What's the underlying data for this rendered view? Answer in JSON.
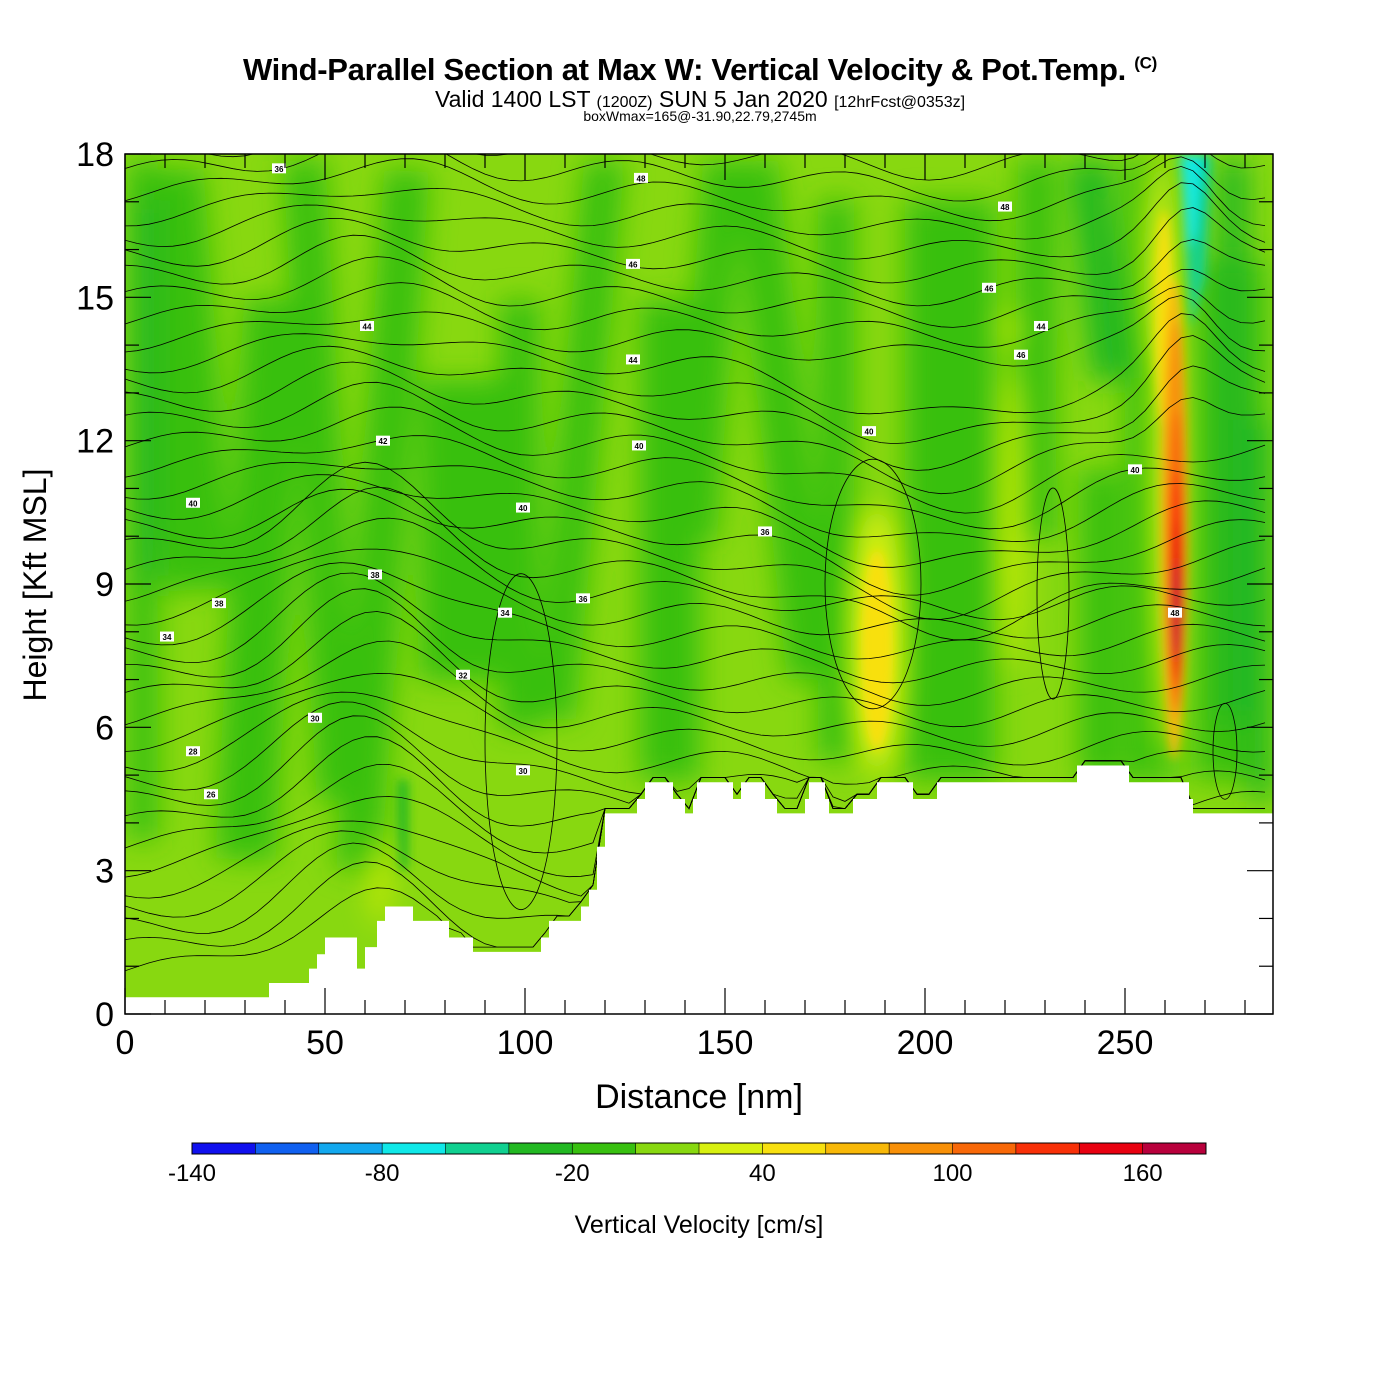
{
  "header": {
    "title": "Wind-Parallel Section at Max W: Vertical Velocity & Pot.Temp.",
    "copyright": "(C)",
    "valid_main": "Valid 1400 LST",
    "valid_z": "(1200Z)",
    "valid_date": "SUN 5 Jan 2020",
    "forecast": "[12hrFcst@0353z]",
    "box_wmax": "boxWmax=165@-31.90,22.79,2745m"
  },
  "chart_data": {
    "type": "heatmap",
    "title": "Wind-Parallel Section at Max W: Vertical Velocity & Pot.Temp.",
    "xlabel": "Distance [nm]",
    "ylabel": "Height [Kft MSL]",
    "xlim": [
      0,
      287
    ],
    "ylim": [
      0,
      18
    ],
    "x_ticks": [
      "0",
      "50",
      "100",
      "150",
      "200",
      "250"
    ],
    "y_ticks": [
      "0",
      "3",
      "6",
      "9",
      "12",
      "15",
      "18"
    ],
    "colorbar": {
      "label": "Vertical Velocity [cm/s]",
      "tick_labels": [
        "-140",
        "-80",
        "-20",
        "40",
        "100",
        "160"
      ],
      "colors": [
        "#1010ee",
        "#1060f0",
        "#12a8ee",
        "#10e8e8",
        "#10d090",
        "#22b822",
        "#38c010",
        "#88d810",
        "#d8f010",
        "#f8e010",
        "#f8b808",
        "#f89008",
        "#f86808",
        "#f83008",
        "#e80010",
        "#b8003c"
      ]
    },
    "terrain_kft": [
      [
        0,
        0.35
      ],
      [
        33,
        0.35
      ],
      [
        36,
        0.65
      ],
      [
        45,
        0.65
      ],
      [
        46,
        0.95
      ],
      [
        48,
        1.25
      ],
      [
        50,
        1.6
      ],
      [
        56,
        1.6
      ],
      [
        58,
        0.95
      ],
      [
        60,
        1.4
      ],
      [
        63,
        1.95
      ],
      [
        65,
        2.25
      ],
      [
        71,
        2.25
      ],
      [
        72,
        1.95
      ],
      [
        80,
        1.95
      ],
      [
        81,
        1.6
      ],
      [
        86,
        1.6
      ],
      [
        87,
        1.3
      ],
      [
        103,
        1.3
      ],
      [
        104,
        1.6
      ],
      [
        106,
        1.95
      ],
      [
        113,
        1.95
      ],
      [
        114,
        2.25
      ],
      [
        116,
        2.6
      ],
      [
        118,
        3.5
      ],
      [
        120,
        4.2
      ],
      [
        127,
        4.2
      ],
      [
        128,
        4.5
      ],
      [
        130,
        4.85
      ],
      [
        136,
        4.85
      ],
      [
        137,
        4.5
      ],
      [
        140,
        4.2
      ],
      [
        142,
        4.5
      ],
      [
        143,
        4.85
      ],
      [
        151,
        4.85
      ],
      [
        152,
        4.5
      ],
      [
        154,
        4.85
      ],
      [
        159,
        4.85
      ],
      [
        160,
        4.5
      ],
      [
        163,
        4.2
      ],
      [
        169,
        4.2
      ],
      [
        170,
        4.5
      ],
      [
        171,
        4.85
      ],
      [
        174,
        4.85
      ],
      [
        175,
        4.5
      ],
      [
        176,
        4.2
      ],
      [
        181,
        4.2
      ],
      [
        182,
        4.5
      ],
      [
        187,
        4.5
      ],
      [
        188,
        4.85
      ],
      [
        196,
        4.85
      ],
      [
        197,
        4.5
      ],
      [
        202,
        4.5
      ],
      [
        203,
        4.85
      ],
      [
        237,
        4.85
      ],
      [
        238,
        5.2
      ],
      [
        250,
        5.2
      ],
      [
        251,
        4.85
      ],
      [
        265,
        4.85
      ],
      [
        266,
        4.5
      ],
      [
        267,
        4.2
      ],
      [
        287,
        4.2
      ]
    ],
    "theta_contour_labels": [
      {
        "text": "36",
        "x": 38.5,
        "y": 17.7
      },
      {
        "text": "48",
        "x": 129,
        "y": 17.5
      },
      {
        "text": "48",
        "x": 220,
        "y": 16.9
      },
      {
        "text": "46",
        "x": 127,
        "y": 15.7
      },
      {
        "text": "46",
        "x": 216,
        "y": 15.2
      },
      {
        "text": "44",
        "x": 60.5,
        "y": 14.4
      },
      {
        "text": "44",
        "x": 229,
        "y": 14.4
      },
      {
        "text": "44",
        "x": 127,
        "y": 13.7
      },
      {
        "text": "46",
        "x": 224,
        "y": 13.8
      },
      {
        "text": "42",
        "x": 64.5,
        "y": 12.0
      },
      {
        "text": "40",
        "x": 128.5,
        "y": 11.9
      },
      {
        "text": "40",
        "x": 186,
        "y": 12.2
      },
      {
        "text": "40",
        "x": 252.5,
        "y": 11.4
      },
      {
        "text": "40",
        "x": 17,
        "y": 10.7
      },
      {
        "text": "40",
        "x": 99.5,
        "y": 10.6
      },
      {
        "text": "36",
        "x": 160,
        "y": 10.1
      },
      {
        "text": "38",
        "x": 62.5,
        "y": 9.2
      },
      {
        "text": "38",
        "x": 23.5,
        "y": 8.6
      },
      {
        "text": "36",
        "x": 114.5,
        "y": 8.7
      },
      {
        "text": "34",
        "x": 95,
        "y": 8.4
      },
      {
        "text": "48",
        "x": 262.5,
        "y": 8.4
      },
      {
        "text": "34",
        "x": 10.5,
        "y": 7.9
      },
      {
        "text": "32",
        "x": 84.5,
        "y": 7.1
      },
      {
        "text": "30",
        "x": 47.5,
        "y": 6.2
      },
      {
        "text": "28",
        "x": 17,
        "y": 5.5
      },
      {
        "text": "30",
        "x": 99.5,
        "y": 5.1
      },
      {
        "text": "26",
        "x": 21.5,
        "y": 4.6
      }
    ]
  }
}
